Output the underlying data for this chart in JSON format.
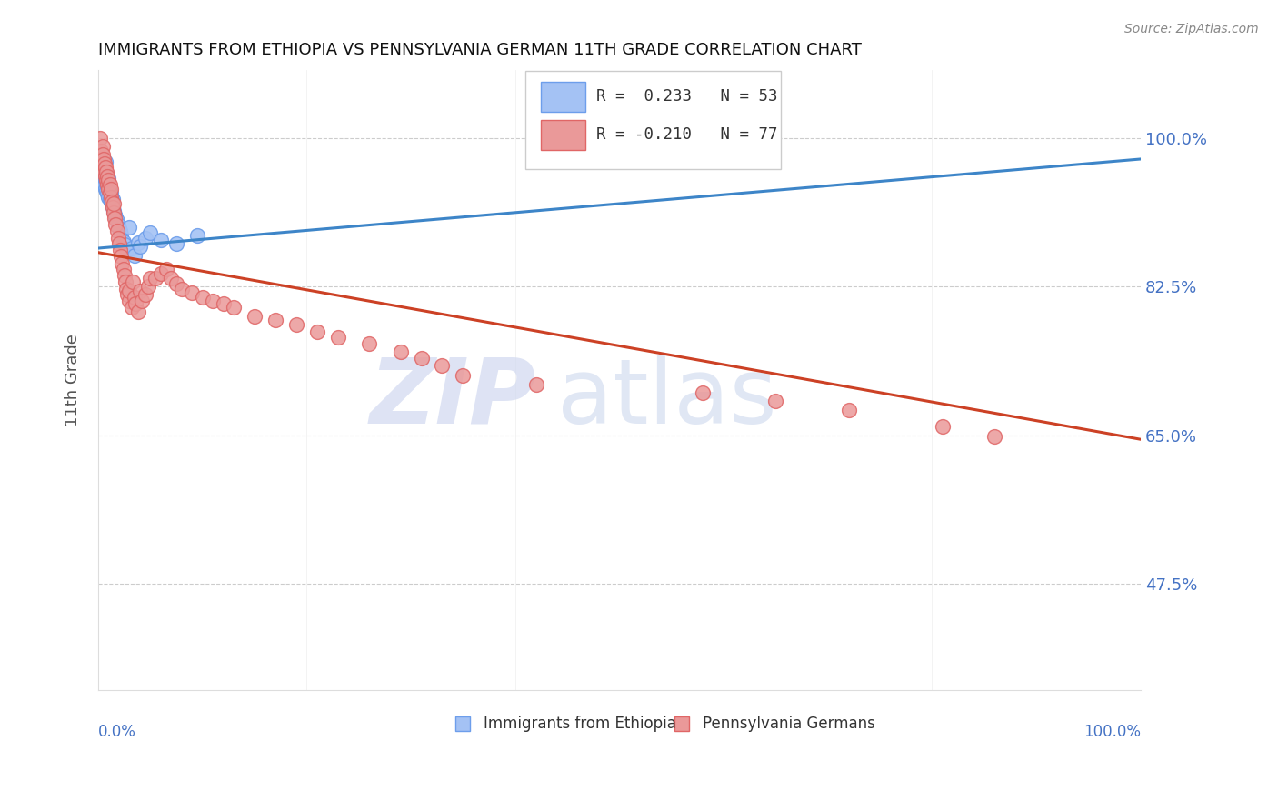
{
  "title": "IMMIGRANTS FROM ETHIOPIA VS PENNSYLVANIA GERMAN 11TH GRADE CORRELATION CHART",
  "source": "Source: ZipAtlas.com",
  "ylabel": "11th Grade",
  "y_ticks": [
    0.475,
    0.65,
    0.825,
    1.0
  ],
  "y_tick_labels": [
    "47.5%",
    "65.0%",
    "82.5%",
    "100.0%"
  ],
  "xlim": [
    0.0,
    1.0
  ],
  "ylim": [
    0.35,
    1.08
  ],
  "legend_r_blue": "0.233",
  "legend_n_blue": "53",
  "legend_r_pink": "-0.210",
  "legend_n_pink": "77",
  "legend_label_blue": "Immigrants from Ethiopia",
  "legend_label_pink": "Pennsylvania Germans",
  "blue_color": "#a4c2f4",
  "pink_color": "#ea9999",
  "blue_edge_color": "#6d9eeb",
  "pink_edge_color": "#e06666",
  "blue_line_color": "#3d85c8",
  "pink_line_color": "#cc4125",
  "blue_line_x": [
    0.0,
    1.0
  ],
  "blue_line_y": [
    0.87,
    0.975
  ],
  "pink_line_x": [
    0.0,
    1.0
  ],
  "pink_line_y": [
    0.865,
    0.645
  ],
  "blue_scatter_x": [
    0.002,
    0.003,
    0.003,
    0.004,
    0.004,
    0.004,
    0.005,
    0.005,
    0.005,
    0.006,
    0.006,
    0.006,
    0.007,
    0.007,
    0.007,
    0.007,
    0.008,
    0.008,
    0.008,
    0.009,
    0.009,
    0.009,
    0.01,
    0.01,
    0.01,
    0.011,
    0.011,
    0.012,
    0.012,
    0.013,
    0.014,
    0.014,
    0.015,
    0.016,
    0.017,
    0.018,
    0.019,
    0.02,
    0.021,
    0.022,
    0.024,
    0.025,
    0.027,
    0.03,
    0.032,
    0.035,
    0.038,
    0.04,
    0.045,
    0.05,
    0.06,
    0.075,
    0.095
  ],
  "blue_scatter_y": [
    0.97,
    0.96,
    0.98,
    0.955,
    0.965,
    0.975,
    0.95,
    0.96,
    0.97,
    0.945,
    0.958,
    0.968,
    0.94,
    0.952,
    0.962,
    0.972,
    0.938,
    0.948,
    0.958,
    0.934,
    0.944,
    0.954,
    0.93,
    0.942,
    0.952,
    0.928,
    0.938,
    0.925,
    0.935,
    0.922,
    0.918,
    0.928,
    0.914,
    0.91,
    0.906,
    0.902,
    0.898,
    0.894,
    0.89,
    0.886,
    0.878,
    0.874,
    0.868,
    0.895,
    0.87,
    0.862,
    0.876,
    0.872,
    0.882,
    0.888,
    0.88,
    0.875,
    0.885
  ],
  "pink_scatter_x": [
    0.002,
    0.003,
    0.003,
    0.004,
    0.004,
    0.005,
    0.005,
    0.006,
    0.006,
    0.007,
    0.007,
    0.008,
    0.008,
    0.009,
    0.009,
    0.01,
    0.01,
    0.011,
    0.011,
    0.012,
    0.012,
    0.013,
    0.014,
    0.015,
    0.015,
    0.016,
    0.017,
    0.018,
    0.019,
    0.02,
    0.021,
    0.022,
    0.023,
    0.024,
    0.025,
    0.026,
    0.027,
    0.028,
    0.03,
    0.03,
    0.032,
    0.033,
    0.035,
    0.036,
    0.038,
    0.04,
    0.042,
    0.045,
    0.048,
    0.05,
    0.055,
    0.06,
    0.065,
    0.07,
    0.075,
    0.08,
    0.09,
    0.1,
    0.11,
    0.12,
    0.13,
    0.15,
    0.17,
    0.19,
    0.21,
    0.23,
    0.26,
    0.29,
    0.31,
    0.33,
    0.35,
    0.42,
    0.58,
    0.65,
    0.72,
    0.81,
    0.86
  ],
  "pink_scatter_y": [
    1.0,
    0.985,
    0.975,
    0.99,
    0.98,
    0.965,
    0.975,
    0.96,
    0.97,
    0.955,
    0.965,
    0.95,
    0.96,
    0.945,
    0.955,
    0.94,
    0.95,
    0.935,
    0.945,
    0.93,
    0.94,
    0.925,
    0.918,
    0.912,
    0.922,
    0.905,
    0.898,
    0.89,
    0.882,
    0.875,
    0.868,
    0.86,
    0.852,
    0.845,
    0.838,
    0.83,
    0.822,
    0.815,
    0.808,
    0.82,
    0.8,
    0.83,
    0.812,
    0.805,
    0.795,
    0.82,
    0.808,
    0.815,
    0.825,
    0.835,
    0.835,
    0.84,
    0.845,
    0.835,
    0.828,
    0.822,
    0.818,
    0.812,
    0.808,
    0.805,
    0.8,
    0.79,
    0.785,
    0.78,
    0.772,
    0.765,
    0.758,
    0.748,
    0.74,
    0.732,
    0.72,
    0.71,
    0.7,
    0.69,
    0.68,
    0.66,
    0.648
  ]
}
